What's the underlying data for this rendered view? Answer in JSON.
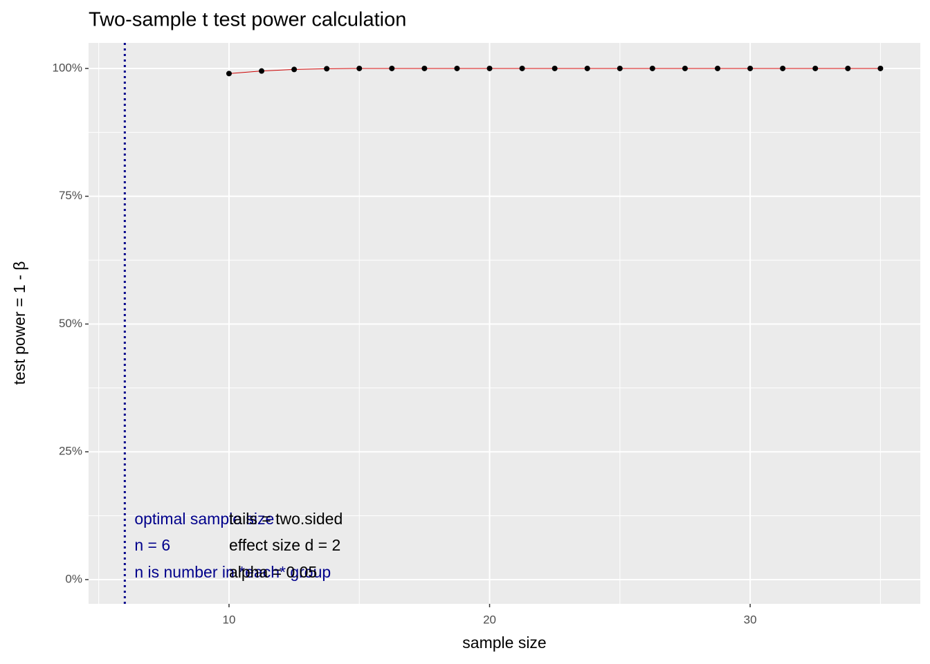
{
  "chart_data": {
    "type": "line",
    "title": "Two-sample t test power calculation",
    "x_label": "sample size",
    "y_label": "test power = 1 - β",
    "x": [
      10,
      11.25,
      12.5,
      13.75,
      15,
      16.25,
      17.5,
      18.75,
      20,
      21.25,
      22.5,
      23.75,
      25,
      26.25,
      27.5,
      28.75,
      30,
      31.25,
      32.5,
      33.75,
      35
    ],
    "series": [
      {
        "name": "power",
        "color": "#cc0000",
        "marker_color": "#000000",
        "values": [
          99.0,
          99.5,
          99.8,
          99.95,
          100,
          100,
          100,
          100,
          100,
          100,
          100,
          100,
          100,
          100,
          100,
          100,
          100,
          100,
          100,
          100,
          100
        ]
      }
    ],
    "xlim": [
      4.61,
      36.53
    ],
    "ylim": [
      -4.74,
      105.0
    ],
    "xticks": [
      10,
      20,
      30
    ],
    "yticks": [
      {
        "value": 0,
        "label": "0%"
      },
      {
        "value": 25,
        "label": "25%"
      },
      {
        "value": 50,
        "label": "50%"
      },
      {
        "value": 75,
        "label": "75%"
      },
      {
        "value": 100,
        "label": "100%"
      }
    ],
    "grid": true,
    "vline": {
      "x": 6,
      "color": "#00008b"
    },
    "annotations_left": [
      "optimal sample size",
      "n = 6",
      "n is number in *each* group"
    ],
    "annotations_right": [
      "tails = two.sided",
      "effect size d = 2",
      "alpha = 0.05"
    ]
  }
}
